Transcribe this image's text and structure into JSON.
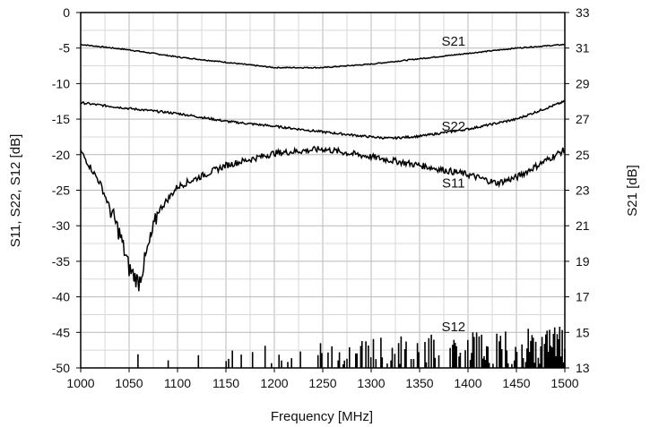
{
  "chart_data": {
    "type": "line",
    "xlabel": "Frequency [MHz]",
    "ylabel_left": "S11, S22, S12 [dB]",
    "ylabel_right": "S21 [dB]",
    "xlim": [
      1000,
      1500
    ],
    "ylim_left": [
      -50,
      0
    ],
    "ylim_right": [
      13,
      33
    ],
    "xticks": [
      1000,
      1050,
      1100,
      1150,
      1200,
      1250,
      1300,
      1350,
      1400,
      1450,
      1500
    ],
    "yticks_left": [
      0,
      -5,
      -10,
      -15,
      -20,
      -25,
      -30,
      -35,
      -40,
      -45,
      -50
    ],
    "yticks_right": [
      33,
      31,
      29,
      27,
      25,
      23,
      21,
      19,
      17,
      15,
      13
    ],
    "grid": true,
    "series": [
      {
        "name": "S21",
        "axis": "right",
        "x": [
          1000,
          1050,
          1100,
          1150,
          1200,
          1250,
          1300,
          1350,
          1400,
          1450,
          1500
        ],
        "y": [
          31.2,
          30.9,
          30.5,
          30.2,
          29.9,
          29.9,
          30.1,
          30.4,
          30.7,
          31.0,
          31.2
        ]
      },
      {
        "name": "S22",
        "axis": "left",
        "x": [
          1000,
          1050,
          1100,
          1150,
          1200,
          1250,
          1300,
          1320,
          1350,
          1400,
          1450,
          1500
        ],
        "y": [
          -12.7,
          -13.5,
          -14.2,
          -15.3,
          -16.0,
          -16.8,
          -17.5,
          -17.7,
          -17.4,
          -16.4,
          -15.0,
          -12.5
        ]
      },
      {
        "name": "S11",
        "axis": "left",
        "x": [
          1000,
          1020,
          1040,
          1050,
          1060,
          1070,
          1080,
          1100,
          1150,
          1200,
          1250,
          1300,
          1350,
          1400,
          1430,
          1450,
          1500
        ],
        "y": [
          -19.5,
          -24,
          -31,
          -36,
          -38,
          -33,
          -28,
          -24.5,
          -21.5,
          -19.8,
          -19.2,
          -20.3,
          -21.5,
          -22.8,
          -24.0,
          -23.2,
          -19.3
        ]
      },
      {
        "name": "S12",
        "axis": "left",
        "x": [
          1000,
          1100,
          1200,
          1300,
          1350,
          1400,
          1450,
          1500
        ],
        "y": [
          -50,
          -50,
          -50,
          -49.5,
          -49.0,
          -48.5,
          -48.0,
          -47.5
        ]
      }
    ],
    "annotations": [
      {
        "text": "S21",
        "x": 1385,
        "y_left": -4
      },
      {
        "text": "S22",
        "x": 1385,
        "y_left": -16
      },
      {
        "text": "S11",
        "x": 1385,
        "y_left": -24
      },
      {
        "text": "S12",
        "x": 1385,
        "y_left": -44.2
      }
    ]
  }
}
